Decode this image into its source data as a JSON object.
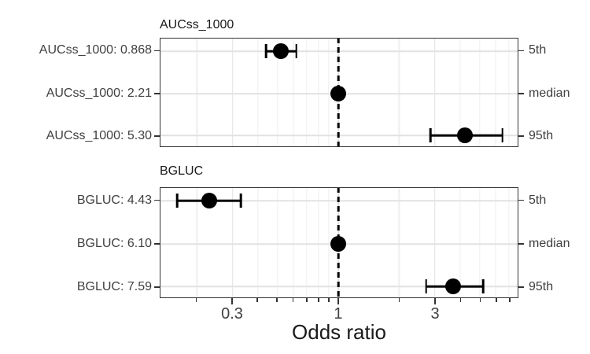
{
  "chart_data": {
    "type": "forest",
    "xlabel": "Odds ratio",
    "x_scale": "log10",
    "x_domain": [
      0.132,
      7.72
    ],
    "reference_line": 1,
    "x_ticks_major": [
      {
        "value": 0.3,
        "label": "0.3"
      },
      {
        "value": 1,
        "label": "1"
      },
      {
        "value": 3,
        "label": "3"
      }
    ],
    "x_ticks_minor": [
      0.2,
      0.4,
      0.5,
      0.6,
      0.7,
      0.8,
      0.9,
      2,
      4,
      5,
      6,
      7
    ],
    "right_axis_labels": [
      "5th",
      "median",
      "95th"
    ],
    "panels": [
      {
        "title": "AUCss_1000",
        "rows": [
          {
            "label": "AUCss_1000: 0.868",
            "percentile": "5th",
            "or": 0.52,
            "lo": 0.44,
            "hi": 0.62
          },
          {
            "label": "AUCss_1000: 2.21",
            "percentile": "median",
            "or": 1.0,
            "lo": null,
            "hi": null
          },
          {
            "label": "AUCss_1000: 5.30",
            "percentile": "95th",
            "or": 4.25,
            "lo": 2.86,
            "hi": 6.5
          }
        ]
      },
      {
        "title": "BGLUC",
        "rows": [
          {
            "label": "BGLUC: 4.43",
            "percentile": "5th",
            "or": 0.23,
            "lo": 0.16,
            "hi": 0.33
          },
          {
            "label": "BGLUC: 6.10",
            "percentile": "median",
            "or": 1.0,
            "lo": null,
            "hi": null
          },
          {
            "label": "BGLUC: 7.59",
            "percentile": "95th",
            "or": 3.7,
            "lo": 2.72,
            "hi": 5.22
          }
        ]
      }
    ]
  },
  "colors": {
    "point": "#000000",
    "reference_line": "#000000",
    "panel_border": "#333333",
    "grid_major": "#e2e2e2",
    "grid_minor": "#efefef",
    "axis_text": "#404040",
    "title_text": "#1a1a1a"
  }
}
